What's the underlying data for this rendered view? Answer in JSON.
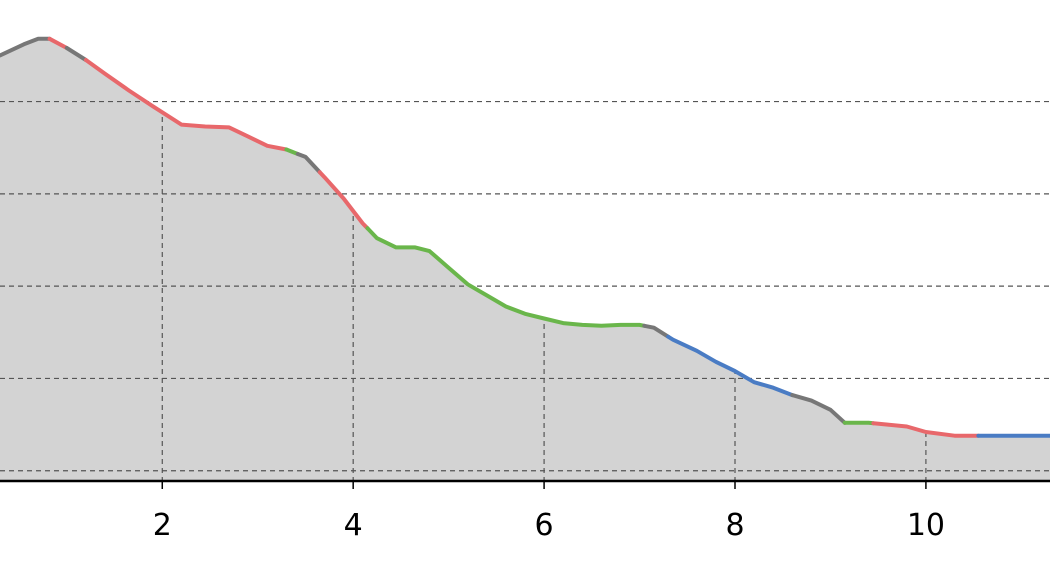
{
  "chart_data": {
    "type": "area",
    "title": "",
    "xlabel": "",
    "ylabel": "",
    "xlim": [
      0.3,
      11.3
    ],
    "ylim": [
      0.0,
      5.2
    ],
    "x_ticks": [
      2,
      4,
      6,
      8,
      10
    ],
    "x_tick_labels": [
      "2",
      "4",
      "6",
      "8",
      "10"
    ],
    "y_grid": [
      0.1,
      1.1,
      2.1,
      3.1,
      4.1
    ],
    "grid": true,
    "fill_color": "#d3d3d3",
    "segment_colors": {
      "gray": "#777777",
      "red": "#e8686b",
      "green": "#6ab64b",
      "blue": "#4a7cc4"
    },
    "points": [
      [
        0.3,
        4.6
      ],
      [
        0.55,
        4.72
      ],
      [
        0.7,
        4.78
      ],
      [
        0.82,
        4.78
      ],
      [
        1.0,
        4.68
      ],
      [
        1.2,
        4.55
      ],
      [
        1.4,
        4.4
      ],
      [
        1.65,
        4.22
      ],
      [
        1.9,
        4.05
      ],
      [
        2.2,
        3.85
      ],
      [
        2.45,
        3.83
      ],
      [
        2.7,
        3.82
      ],
      [
        2.9,
        3.72
      ],
      [
        3.1,
        3.62
      ],
      [
        3.3,
        3.58
      ],
      [
        3.5,
        3.5
      ],
      [
        3.7,
        3.28
      ],
      [
        3.9,
        3.05
      ],
      [
        4.1,
        2.78
      ],
      [
        4.25,
        2.62
      ],
      [
        4.45,
        2.52
      ],
      [
        4.65,
        2.52
      ],
      [
        4.8,
        2.48
      ],
      [
        5.0,
        2.3
      ],
      [
        5.2,
        2.12
      ],
      [
        5.4,
        2.0
      ],
      [
        5.6,
        1.88
      ],
      [
        5.8,
        1.8
      ],
      [
        6.0,
        1.75
      ],
      [
        6.2,
        1.7
      ],
      [
        6.4,
        1.68
      ],
      [
        6.6,
        1.67
      ],
      [
        6.8,
        1.68
      ],
      [
        7.0,
        1.68
      ],
      [
        7.15,
        1.65
      ],
      [
        7.35,
        1.52
      ],
      [
        7.6,
        1.4
      ],
      [
        7.8,
        1.28
      ],
      [
        8.0,
        1.18
      ],
      [
        8.2,
        1.06
      ],
      [
        8.4,
        1.0
      ],
      [
        8.6,
        0.92
      ],
      [
        8.8,
        0.86
      ],
      [
        9.0,
        0.76
      ],
      [
        9.15,
        0.62
      ],
      [
        9.4,
        0.62
      ],
      [
        9.6,
        0.6
      ],
      [
        9.8,
        0.58
      ],
      [
        10.0,
        0.52
      ],
      [
        10.3,
        0.48
      ],
      [
        10.6,
        0.48
      ],
      [
        11.0,
        0.48
      ],
      [
        11.3,
        0.48
      ]
    ],
    "segments": [
      {
        "x_start": 0.3,
        "x_end": 0.82,
        "color": "gray"
      },
      {
        "x_start": 0.82,
        "x_end": 1.0,
        "color": "red"
      },
      {
        "x_start": 1.0,
        "x_end": 1.2,
        "color": "gray"
      },
      {
        "x_start": 1.2,
        "x_end": 3.3,
        "color": "red"
      },
      {
        "x_start": 3.3,
        "x_end": 3.42,
        "color": "green"
      },
      {
        "x_start": 3.42,
        "x_end": 3.65,
        "color": "gray"
      },
      {
        "x_start": 3.65,
        "x_end": 4.15,
        "color": "red"
      },
      {
        "x_start": 4.15,
        "x_end": 7.05,
        "color": "green"
      },
      {
        "x_start": 7.05,
        "x_end": 7.3,
        "color": "gray"
      },
      {
        "x_start": 7.3,
        "x_end": 8.6,
        "color": "blue"
      },
      {
        "x_start": 8.6,
        "x_end": 9.15,
        "color": "gray"
      },
      {
        "x_start": 9.15,
        "x_end": 9.45,
        "color": "green"
      },
      {
        "x_start": 9.45,
        "x_end": 10.55,
        "color": "red"
      },
      {
        "x_start": 10.55,
        "x_end": 11.3,
        "color": "blue"
      }
    ]
  }
}
